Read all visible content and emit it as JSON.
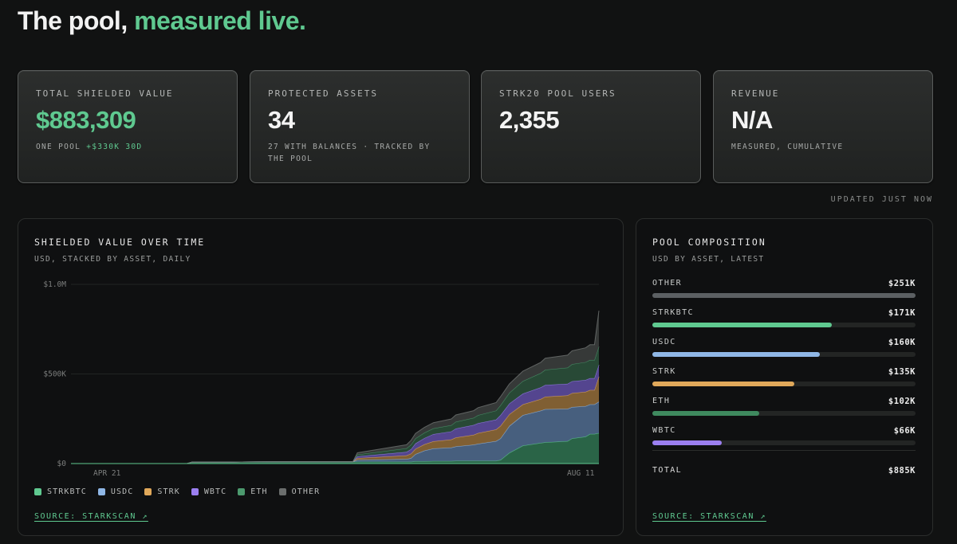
{
  "header": {
    "title_prefix": "The pool,",
    "title_accent": "measured live."
  },
  "stats": [
    {
      "label": "TOTAL SHIELDED VALUE",
      "value": "$883,309",
      "sub": "ONE POOL",
      "delta": "+$330K 30D"
    },
    {
      "label": "PROTECTED ASSETS",
      "value": "34",
      "sub": "27 WITH BALANCES · TRACKED BY THE POOL"
    },
    {
      "label": "STRK20 POOL USERS",
      "value": "2,355",
      "sub": ""
    },
    {
      "label": "REVENUE",
      "value": "N/A",
      "sub": "MEASURED, CUMULATIVE"
    }
  ],
  "updated": "UPDATED JUST NOW",
  "chart_panel": {
    "title": "SHIELDED VALUE OVER TIME",
    "subtitle": "USD, STACKED BY ASSET, DAILY",
    "source": "SOURCE: STARKSCAN ↗"
  },
  "chart_data": {
    "type": "area",
    "stacked": true,
    "title": "SHIELDED VALUE OVER TIME",
    "subtitle": "USD, STACKED BY ASSET, DAILY",
    "y_ticks": [
      {
        "value": 0,
        "label": "$0"
      },
      {
        "value": 500000,
        "label": "$500K"
      },
      {
        "value": 1000000,
        "label": "$1.0M"
      }
    ],
    "ylim": [
      0,
      1000000
    ],
    "x_ticks": [
      {
        "day": 0,
        "label": "APR 21"
      },
      {
        "day": 112,
        "label": "AUG 11"
      }
    ],
    "xlim": [
      -5,
      113
    ],
    "grid": true,
    "legend_position": "bottom",
    "series": [
      {
        "name": "STRKBTC",
        "color": "#5fc990",
        "fill": "#2d6b4c",
        "points": [
          [
            -5,
            0
          ],
          [
            5,
            0
          ],
          [
            21,
            0
          ],
          [
            22,
            8000
          ],
          [
            30,
            8000
          ],
          [
            33,
            9000
          ],
          [
            40,
            10000
          ],
          [
            58,
            10000
          ],
          [
            59,
            10000
          ],
          [
            70,
            10000
          ],
          [
            71,
            10000
          ],
          [
            72,
            12000
          ],
          [
            74,
            12000
          ],
          [
            76,
            14000
          ],
          [
            80,
            14000
          ],
          [
            81,
            15000
          ],
          [
            85,
            15000
          ],
          [
            86,
            15000
          ],
          [
            90,
            15000
          ],
          [
            91,
            20000
          ],
          [
            93,
            60000
          ],
          [
            96,
            100000
          ],
          [
            100,
            115000
          ],
          [
            101,
            118000
          ],
          [
            106,
            125000
          ],
          [
            107,
            140000
          ],
          [
            110,
            150000
          ],
          [
            111,
            165000
          ],
          [
            112,
            165000
          ],
          [
            113,
            170000
          ]
        ]
      },
      {
        "name": "USDC",
        "color": "#8fb7e6",
        "fill": "#4c6688",
        "points": [
          [
            -5,
            0
          ],
          [
            5,
            0
          ],
          [
            21,
            0
          ],
          [
            22,
            0
          ],
          [
            30,
            0
          ],
          [
            33,
            0
          ],
          [
            40,
            0
          ],
          [
            58,
            0
          ],
          [
            59,
            10000
          ],
          [
            70,
            15000
          ],
          [
            71,
            20000
          ],
          [
            72,
            40000
          ],
          [
            74,
            60000
          ],
          [
            76,
            70000
          ],
          [
            80,
            75000
          ],
          [
            81,
            80000
          ],
          [
            85,
            90000
          ],
          [
            86,
            95000
          ],
          [
            90,
            110000
          ],
          [
            91,
            120000
          ],
          [
            93,
            150000
          ],
          [
            96,
            170000
          ],
          [
            100,
            180000
          ],
          [
            101,
            185000
          ],
          [
            106,
            180000
          ],
          [
            107,
            175000
          ],
          [
            110,
            170000
          ],
          [
            111,
            165000
          ],
          [
            112,
            165000
          ],
          [
            113,
            175000
          ]
        ]
      },
      {
        "name": "STRK",
        "color": "#e0a85a",
        "fill": "#8a6636",
        "points": [
          [
            -5,
            0
          ],
          [
            5,
            0
          ],
          [
            21,
            0
          ],
          [
            22,
            0
          ],
          [
            30,
            0
          ],
          [
            33,
            0
          ],
          [
            40,
            0
          ],
          [
            58,
            0
          ],
          [
            59,
            10000
          ],
          [
            70,
            20000
          ],
          [
            71,
            25000
          ],
          [
            72,
            30000
          ],
          [
            74,
            35000
          ],
          [
            76,
            40000
          ],
          [
            80,
            45000
          ],
          [
            81,
            50000
          ],
          [
            85,
            55000
          ],
          [
            86,
            60000
          ],
          [
            90,
            65000
          ],
          [
            91,
            70000
          ],
          [
            93,
            65000
          ],
          [
            96,
            60000
          ],
          [
            100,
            65000
          ],
          [
            101,
            70000
          ],
          [
            106,
            75000
          ],
          [
            107,
            78000
          ],
          [
            110,
            80000
          ],
          [
            111,
            80000
          ],
          [
            112,
            80000
          ],
          [
            113,
            140000
          ]
        ]
      },
      {
        "name": "WBTC",
        "color": "#9b7ff0",
        "fill": "#5a4a9a",
        "points": [
          [
            -5,
            0
          ],
          [
            5,
            0
          ],
          [
            21,
            0
          ],
          [
            22,
            0
          ],
          [
            30,
            0
          ],
          [
            33,
            0
          ],
          [
            40,
            0
          ],
          [
            58,
            0
          ],
          [
            59,
            10000
          ],
          [
            70,
            20000
          ],
          [
            71,
            25000
          ],
          [
            72,
            30000
          ],
          [
            74,
            35000
          ],
          [
            76,
            40000
          ],
          [
            80,
            45000
          ],
          [
            81,
            50000
          ],
          [
            85,
            55000
          ],
          [
            86,
            55000
          ],
          [
            90,
            55000
          ],
          [
            91,
            60000
          ],
          [
            93,
            60000
          ],
          [
            96,
            60000
          ],
          [
            100,
            65000
          ],
          [
            101,
            65000
          ],
          [
            106,
            65000
          ],
          [
            107,
            66000
          ],
          [
            110,
            66000
          ],
          [
            111,
            66000
          ],
          [
            112,
            66000
          ],
          [
            113,
            66000
          ]
        ]
      },
      {
        "name": "ETH",
        "color": "#4c9a6e",
        "fill": "#2a4e3a",
        "points": [
          [
            -5,
            0
          ],
          [
            5,
            0
          ],
          [
            21,
            0
          ],
          [
            22,
            0
          ],
          [
            30,
            0
          ],
          [
            33,
            0
          ],
          [
            40,
            0
          ],
          [
            58,
            0
          ],
          [
            59,
            10000
          ],
          [
            70,
            20000
          ],
          [
            71,
            25000
          ],
          [
            72,
            28000
          ],
          [
            74,
            30000
          ],
          [
            76,
            32000
          ],
          [
            80,
            35000
          ],
          [
            81,
            38000
          ],
          [
            85,
            40000
          ],
          [
            86,
            45000
          ],
          [
            90,
            50000
          ],
          [
            91,
            55000
          ],
          [
            93,
            60000
          ],
          [
            96,
            70000
          ],
          [
            100,
            80000
          ],
          [
            101,
            85000
          ],
          [
            106,
            90000
          ],
          [
            107,
            95000
          ],
          [
            110,
            100000
          ],
          [
            111,
            102000
          ],
          [
            112,
            102000
          ],
          [
            113,
            102000
          ]
        ]
      },
      {
        "name": "OTHER",
        "color": "#6b6e6d",
        "fill": "#3a3d3c",
        "points": [
          [
            -5,
            0
          ],
          [
            5,
            0
          ],
          [
            21,
            0
          ],
          [
            22,
            0
          ],
          [
            30,
            0
          ],
          [
            33,
            0
          ],
          [
            40,
            0
          ],
          [
            58,
            0
          ],
          [
            59,
            10000
          ],
          [
            70,
            20000
          ],
          [
            71,
            25000
          ],
          [
            72,
            28000
          ],
          [
            74,
            30000
          ],
          [
            76,
            32000
          ],
          [
            80,
            35000
          ],
          [
            81,
            38000
          ],
          [
            85,
            40000
          ],
          [
            86,
            42000
          ],
          [
            90,
            45000
          ],
          [
            91,
            48000
          ],
          [
            93,
            50000
          ],
          [
            96,
            55000
          ],
          [
            100,
            60000
          ],
          [
            101,
            65000
          ],
          [
            106,
            70000
          ],
          [
            107,
            75000
          ],
          [
            110,
            80000
          ],
          [
            111,
            85000
          ],
          [
            112,
            85000
          ],
          [
            113,
            200000
          ]
        ]
      }
    ]
  },
  "composition": {
    "title": "POOL COMPOSITION",
    "subtitle": "USD BY ASSET, LATEST",
    "rows": [
      {
        "name": "OTHER",
        "value": "$251K",
        "fraction": 1.0,
        "color": "#5c6063"
      },
      {
        "name": "STRKBTC",
        "value": "$171K",
        "fraction": 0.681,
        "color": "#5fc990"
      },
      {
        "name": "USDC",
        "value": "$160K",
        "fraction": 0.637,
        "color": "#8fb7e6"
      },
      {
        "name": "STRK",
        "value": "$135K",
        "fraction": 0.538,
        "color": "#e0a85a"
      },
      {
        "name": "ETH",
        "value": "$102K",
        "fraction": 0.406,
        "color": "#3f8a5f"
      },
      {
        "name": "WBTC",
        "value": "$66K",
        "fraction": 0.263,
        "color": "#9b7ff0"
      }
    ],
    "total_label": "TOTAL",
    "total_value": "$885K",
    "source": "SOURCE: STARKSCAN ↗"
  }
}
